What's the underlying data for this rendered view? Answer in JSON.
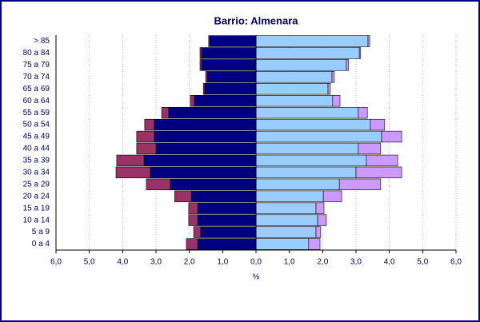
{
  "chart_data": {
    "type": "pyramid",
    "title": "Barrio: Almenara",
    "x_label": "%",
    "categories": [
      "0 a 4",
      "5 a 9",
      "10 a 14",
      "15 a 19",
      "20 a 24",
      "25 a 29",
      "30 a 34",
      "35 a 39",
      "40 a 44",
      "45 a 49",
      "50 a 54",
      "55 a 59",
      "60 a 64",
      "65 a 69",
      "70 a 74",
      "75 a 79",
      "80 a 84",
      "> 85"
    ],
    "series": [
      {
        "color": "#000080",
        "direction": "left",
        "values": [
          1.75,
          1.66,
          1.75,
          1.75,
          1.94,
          2.57,
          3.17,
          3.36,
          3.0,
          3.05,
          3.05,
          2.62,
          1.85,
          1.54,
          1.46,
          1.63,
          1.63,
          1.39
        ]
      },
      {
        "color": "#993366",
        "direction": "left",
        "values": [
          0.34,
          0.21,
          0.27,
          0.27,
          0.5,
          0.72,
          1.03,
          0.82,
          0.58,
          0.53,
          0.29,
          0.21,
          0.12,
          0.04,
          0.05,
          0.05,
          0.05,
          0.03
        ]
      },
      {
        "color": "#99ccff",
        "direction": "right",
        "values": [
          1.58,
          1.8,
          1.85,
          1.8,
          2.02,
          2.5,
          3.0,
          3.31,
          3.07,
          3.77,
          3.43,
          3.07,
          2.3,
          2.16,
          2.28,
          2.71,
          3.1,
          3.36
        ]
      },
      {
        "color": "#cc99ff",
        "direction": "right",
        "values": [
          0.34,
          0.14,
          0.26,
          0.24,
          0.55,
          1.24,
          1.37,
          0.94,
          0.67,
          0.6,
          0.43,
          0.27,
          0.22,
          0.07,
          0.07,
          0.07,
          0.04,
          0.05
        ]
      }
    ],
    "xlim": [
      -6,
      6
    ],
    "xticks": [
      {
        "value": -6,
        "label": "6,0"
      },
      {
        "value": -5,
        "label": "5,0"
      },
      {
        "value": -4,
        "label": "4,0"
      },
      {
        "value": -3,
        "label": "3,0"
      },
      {
        "value": -2,
        "label": "2,0"
      },
      {
        "value": -1,
        "label": "1,0"
      },
      {
        "value": 0,
        "label": "0,0"
      },
      {
        "value": 1,
        "label": "1,0"
      },
      {
        "value": 2,
        "label": "2,0"
      },
      {
        "value": 3,
        "label": "3,0"
      },
      {
        "value": 4,
        "label": "4,0"
      },
      {
        "value": 5,
        "label": "5,0"
      },
      {
        "value": 6,
        "label": "6,0"
      }
    ],
    "grid": true
  }
}
